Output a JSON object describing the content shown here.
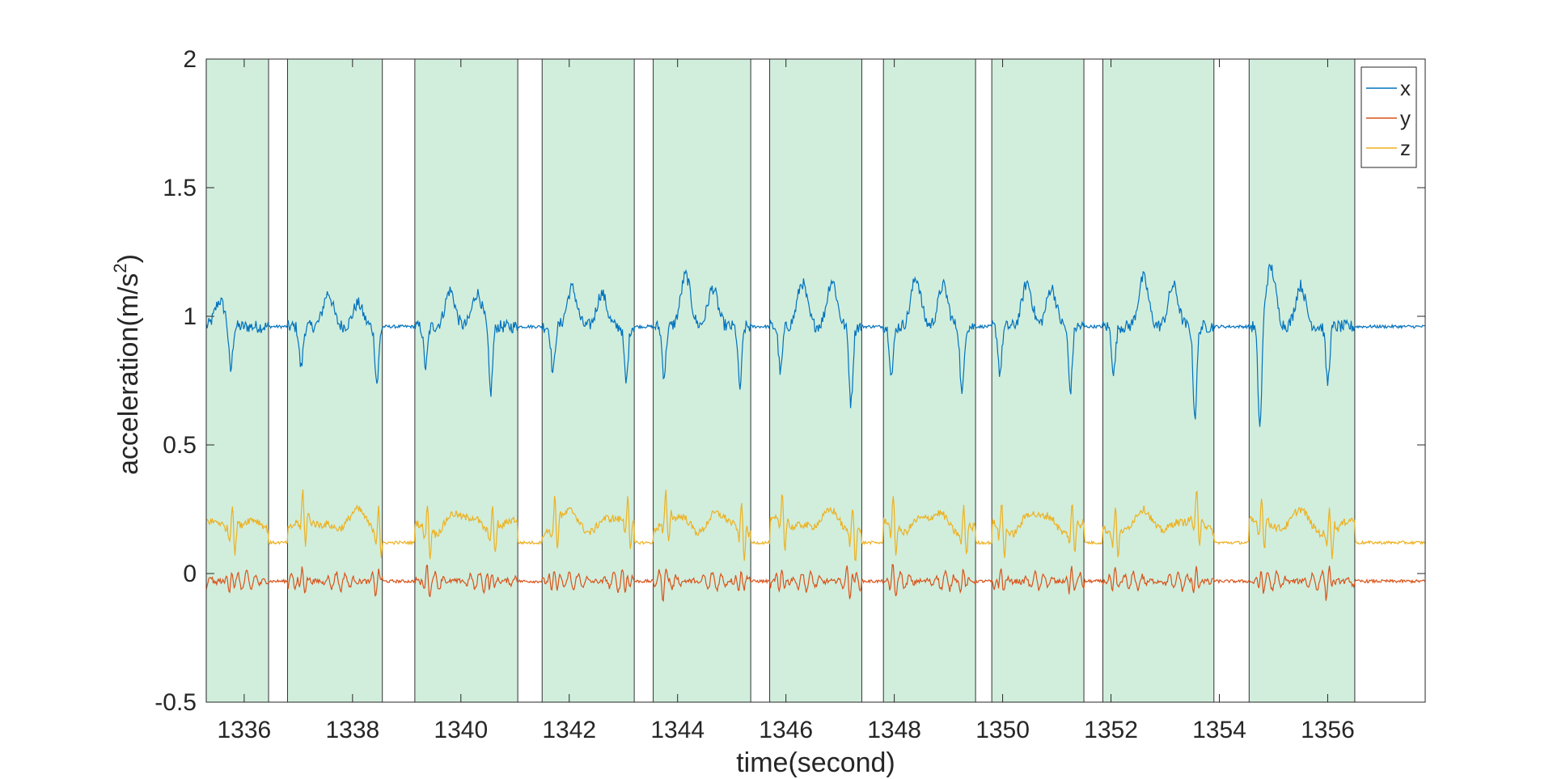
{
  "chart_data": {
    "type": "line",
    "xlabel": "time(second)",
    "ylabel_main": "acceleration(m/s",
    "ylabel_sup": "2",
    "ylabel_close": ")",
    "xlim": [
      1335.3,
      1357.8
    ],
    "ylim": [
      -0.5,
      2
    ],
    "xticks": [
      1336,
      1338,
      1340,
      1342,
      1344,
      1346,
      1348,
      1350,
      1352,
      1354,
      1356
    ],
    "yticks": [
      -0.5,
      0,
      0.5,
      1,
      1.5,
      2
    ],
    "ytick_labels": [
      "-0.5",
      "0",
      "0.5",
      "1",
      "1.5",
      "2"
    ],
    "grid": false,
    "legend_position": "top-right",
    "highlight_color": "#d1eedd",
    "highlight_intervals": [
      [
        1335.3,
        1336.45
      ],
      [
        1336.8,
        1338.55
      ],
      [
        1339.15,
        1341.05
      ],
      [
        1341.5,
        1343.2
      ],
      [
        1343.55,
        1345.35
      ],
      [
        1345.7,
        1347.4
      ],
      [
        1347.8,
        1349.5
      ],
      [
        1349.8,
        1351.5
      ],
      [
        1351.85,
        1353.9
      ],
      [
        1354.55,
        1356.5
      ]
    ],
    "steps": [
      {
        "start": 1335.3,
        "end": 1336.45,
        "dips": [
          [
            1335.75,
            0.78
          ]
        ],
        "peaks": [
          [
            1335.55,
            1.06
          ]
        ]
      },
      {
        "start": 1336.8,
        "end": 1338.55,
        "dips": [
          [
            1337.05,
            0.8
          ],
          [
            1338.45,
            0.74
          ]
        ],
        "peaks": [
          [
            1337.55,
            1.09
          ],
          [
            1338.1,
            1.05
          ]
        ]
      },
      {
        "start": 1339.15,
        "end": 1341.05,
        "dips": [
          [
            1339.35,
            0.8
          ],
          [
            1340.55,
            0.7
          ]
        ],
        "peaks": [
          [
            1339.8,
            1.1
          ],
          [
            1340.3,
            1.09
          ]
        ]
      },
      {
        "start": 1341.5,
        "end": 1343.2,
        "dips": [
          [
            1341.7,
            0.78
          ],
          [
            1343.05,
            0.74
          ]
        ],
        "peaks": [
          [
            1342.05,
            1.11
          ],
          [
            1342.6,
            1.09
          ]
        ]
      },
      {
        "start": 1343.55,
        "end": 1345.35,
        "dips": [
          [
            1343.75,
            0.77
          ],
          [
            1345.15,
            0.72
          ]
        ],
        "peaks": [
          [
            1344.15,
            1.16
          ],
          [
            1344.65,
            1.11
          ]
        ]
      },
      {
        "start": 1345.7,
        "end": 1347.4,
        "dips": [
          [
            1345.9,
            0.78
          ],
          [
            1347.2,
            0.66
          ]
        ],
        "peaks": [
          [
            1346.3,
            1.13
          ],
          [
            1346.85,
            1.14
          ]
        ]
      },
      {
        "start": 1347.8,
        "end": 1349.5,
        "dips": [
          [
            1347.95,
            0.77
          ],
          [
            1349.25,
            0.69
          ]
        ],
        "peaks": [
          [
            1348.4,
            1.15
          ],
          [
            1348.9,
            1.12
          ]
        ]
      },
      {
        "start": 1349.8,
        "end": 1351.5,
        "dips": [
          [
            1349.95,
            0.78
          ],
          [
            1351.25,
            0.71
          ]
        ],
        "peaks": [
          [
            1350.45,
            1.13
          ],
          [
            1350.9,
            1.11
          ]
        ]
      },
      {
        "start": 1351.85,
        "end": 1353.9,
        "dips": [
          [
            1352.05,
            0.78
          ],
          [
            1353.55,
            0.61
          ]
        ],
        "peaks": [
          [
            1352.6,
            1.15
          ],
          [
            1353.15,
            1.12
          ]
        ]
      },
      {
        "start": 1354.55,
        "end": 1356.5,
        "dips": [
          [
            1354.75,
            0.55
          ],
          [
            1356.0,
            0.74
          ]
        ],
        "peaks": [
          [
            1354.95,
            1.19
          ],
          [
            1355.5,
            1.12
          ]
        ]
      }
    ],
    "series": [
      {
        "name": "x",
        "color": "#0072bd",
        "baseline": 0.96,
        "noise": 0.006
      },
      {
        "name": "y",
        "color": "#d95319",
        "baseline": -0.03,
        "noise": 0.006
      },
      {
        "name": "z",
        "color": "#edb120",
        "baseline": 0.12,
        "noise": 0.006
      }
    ]
  }
}
